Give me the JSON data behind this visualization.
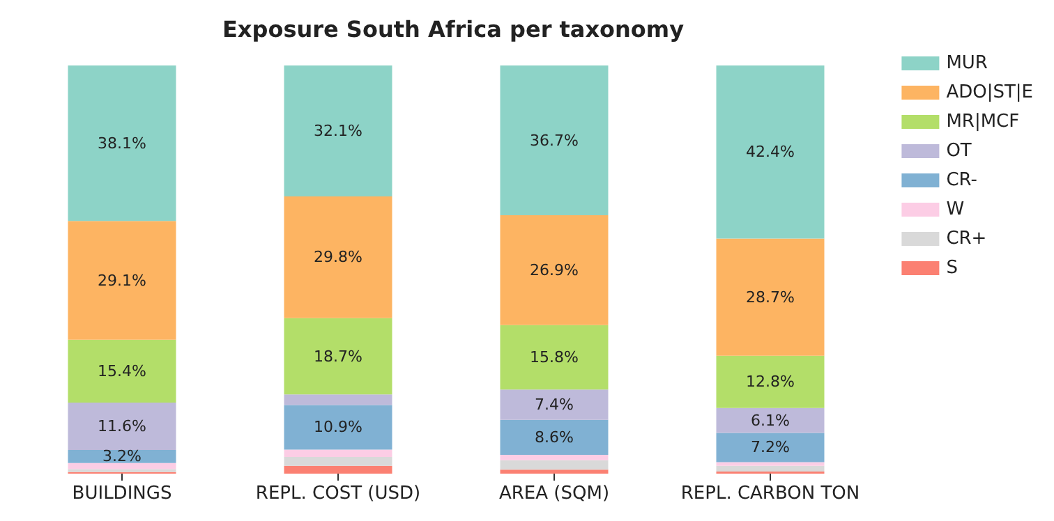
{
  "chart_data": {
    "type": "bar",
    "title": "Exposure South Africa per taxonomy",
    "categories": [
      "BUILDINGS",
      "REPL. COST (USD)",
      "AREA (SQM)",
      "REPL. CARBON TON"
    ],
    "stacked": true,
    "legend": "top right",
    "series": [
      {
        "name": "S",
        "color": "#fb8072",
        "values": [
          0.4,
          1.9,
          1.0,
          0.5
        ],
        "value_labels": [
          null,
          null,
          null,
          null
        ]
      },
      {
        "name": "CR+",
        "color": "#d9d9d9",
        "values": [
          0.7,
          2.2,
          2.3,
          1.4
        ],
        "value_labels": [
          null,
          null,
          null,
          null
        ]
      },
      {
        "name": "W",
        "color": "#fccde5",
        "values": [
          1.5,
          1.8,
          1.3,
          0.9
        ],
        "value_labels": [
          null,
          null,
          null,
          null
        ]
      },
      {
        "name": "CR-",
        "color": "#80b1d3",
        "values": [
          3.2,
          10.9,
          8.6,
          7.2
        ],
        "value_labels": [
          "3.2%",
          "10.9%",
          "8.6%",
          "7.2%"
        ]
      },
      {
        "name": "OT",
        "color": "#bebada",
        "values": [
          11.6,
          2.6,
          7.4,
          6.1
        ],
        "value_labels": [
          "11.6%",
          null,
          "7.4%",
          "6.1%"
        ]
      },
      {
        "name": "MR|MCF",
        "color": "#b3de69",
        "values": [
          15.4,
          18.7,
          15.8,
          12.8
        ],
        "value_labels": [
          "15.4%",
          "18.7%",
          "15.8%",
          "12.8%"
        ]
      },
      {
        "name": "ADO|ST|E",
        "color": "#fdb462",
        "values": [
          29.1,
          29.8,
          26.9,
          28.7
        ],
        "value_labels": [
          "29.1%",
          "29.8%",
          "26.9%",
          "28.7%"
        ]
      },
      {
        "name": "MUR",
        "color": "#8dd3c7",
        "values": [
          38.1,
          32.1,
          36.7,
          42.4
        ],
        "value_labels": [
          "38.1%",
          "32.1%",
          "36.7%",
          "42.4%"
        ]
      }
    ]
  }
}
